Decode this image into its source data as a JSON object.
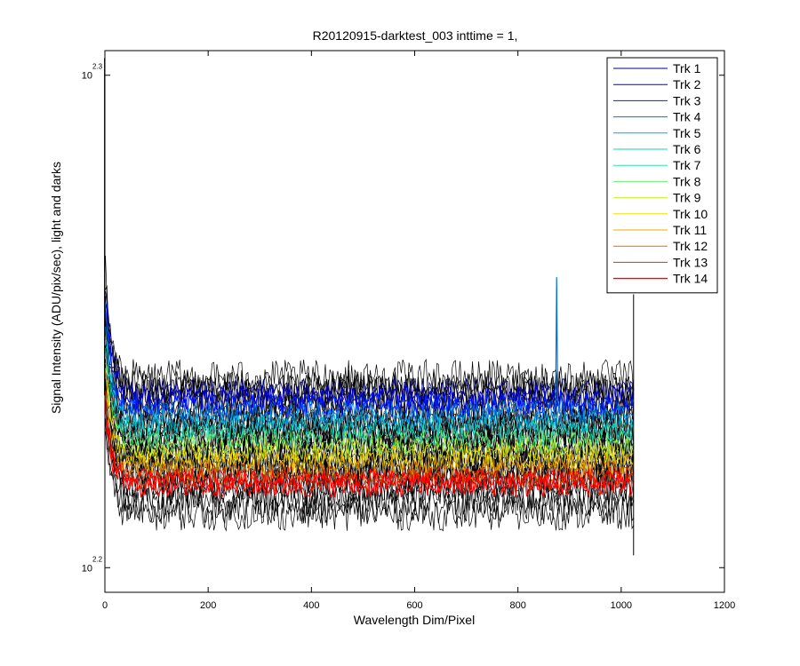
{
  "chart_data": {
    "type": "line",
    "title": "R20120915-darktest_003 inttime = 1,",
    "xlabel": "Wavelength Dim/Pixel",
    "ylabel": "Signal Intensity (ADU/pix/sec), light and darks",
    "yscale": "log",
    "xlim": [
      0,
      1200
    ],
    "ylim": [
      2.195,
      2.305
    ],
    "x_ticks": [
      0,
      200,
      400,
      600,
      800,
      1000,
      1200
    ],
    "y_ticks": [
      {
        "base": "10",
        "exp": "2.2",
        "value": 2.2
      },
      {
        "base": "10",
        "exp": "2.3",
        "value": 2.3
      }
    ],
    "grid": false,
    "legend_position": "top-right",
    "x_range": [
      1,
      1024
    ],
    "series": [
      {
        "name": "Trk 1",
        "color": "#00007a",
        "level": 2.236,
        "dark_level": 2.236,
        "start_level": 2.258
      },
      {
        "name": "Trk 2",
        "color": "#0000c8",
        "level": 2.2345,
        "dark_level": 2.2385,
        "start_level": 2.256
      },
      {
        "name": "Trk 3",
        "color": "#0022ff",
        "level": 2.233,
        "dark_level": 2.2365,
        "start_level": 2.254
      },
      {
        "name": "Trk 4",
        "color": "#0077dd",
        "level": 2.2315,
        "dark_level": 2.235,
        "start_level": 2.252
      },
      {
        "name": "Trk 5",
        "color": "#00a8e8",
        "level": 2.23,
        "dark_level": 2.233,
        "start_level": 2.25
      },
      {
        "name": "Trk 6",
        "color": "#10d0d0",
        "level": 2.2285,
        "dark_level": 2.2315,
        "start_level": 2.248
      },
      {
        "name": "Trk 7",
        "color": "#30e0b0",
        "level": 2.227,
        "dark_level": 2.23,
        "start_level": 2.246
      },
      {
        "name": "Trk 8",
        "color": "#70ee70",
        "level": 2.2255,
        "dark_level": 2.2285,
        "start_level": 2.244
      },
      {
        "name": "Trk 9",
        "color": "#c8f030",
        "level": 2.224,
        "dark_level": 2.227,
        "start_level": 2.242
      },
      {
        "name": "Trk 10",
        "color": "#f0e000",
        "level": 2.2225,
        "dark_level": 2.2255,
        "start_level": 2.24
      },
      {
        "name": "Trk 11",
        "color": "#e8b000",
        "level": 2.221,
        "dark_level": 2.224,
        "start_level": 2.238
      },
      {
        "name": "Trk 12",
        "color": "#e07000",
        "level": 2.2195,
        "dark_level": 2.2225,
        "start_level": 2.236
      },
      {
        "name": "Trk 13",
        "color": "#e03000",
        "level": 2.218,
        "dark_level": 2.221,
        "start_level": 2.234
      },
      {
        "name": "Trk 14",
        "color": "#ff0000",
        "level": 2.2165,
        "dark_level": 2.2195,
        "start_level": 2.232
      }
    ],
    "annotations": [
      {
        "series": "Trk 4",
        "type": "spike",
        "x": 875,
        "peak": 2.259
      }
    ]
  }
}
